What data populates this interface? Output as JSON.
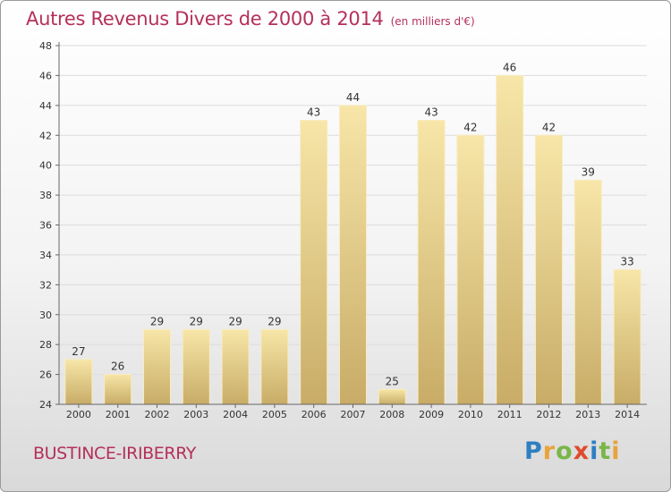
{
  "header": {
    "title": "Autres Revenus Divers de 2000 à 2014",
    "subtitle": "(en milliers d'€)"
  },
  "footer": {
    "commune": "BUSTINCE-IRIBERRY",
    "logo_text": "Proxiti"
  },
  "colors": {
    "title": "#b5305a",
    "bar_light": "#f6e3a3",
    "bar_dark": "#c9ad66",
    "logo_letters": [
      "#2f7fc1",
      "#e8a33a",
      "#7ab648",
      "#e04b2d",
      "#2f7fc1",
      "#7ab648",
      "#e8a33a"
    ]
  },
  "chart_data": {
    "type": "bar",
    "title": "Autres Revenus Divers de 2000 à 2014",
    "subtitle": "(en milliers d'€)",
    "categories": [
      "2000",
      "2001",
      "2002",
      "2003",
      "2004",
      "2005",
      "2006",
      "2007",
      "2008",
      "2009",
      "2010",
      "2011",
      "2012",
      "2013",
      "2014"
    ],
    "values": [
      27,
      26,
      29,
      29,
      29,
      29,
      43,
      44,
      25,
      43,
      42,
      46,
      42,
      39,
      33
    ],
    "ylim": [
      24,
      48
    ],
    "yticks": [
      24,
      26,
      28,
      30,
      32,
      34,
      36,
      38,
      40,
      42,
      44,
      46,
      48
    ],
    "grid": "horizontal",
    "data_labels": true
  }
}
